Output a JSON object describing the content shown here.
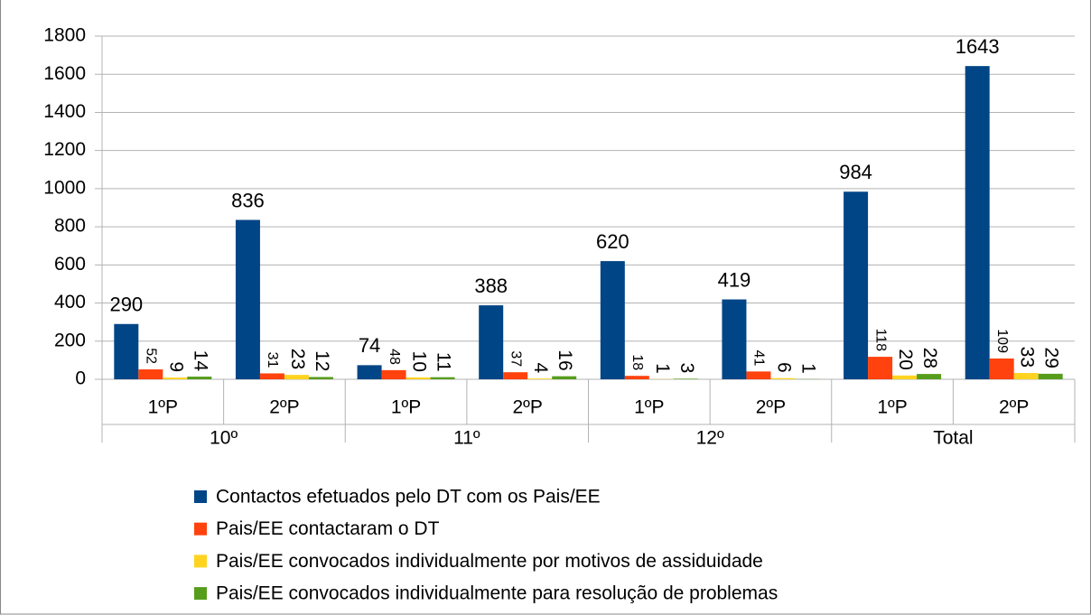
{
  "chart_data": {
    "type": "bar",
    "categories": [
      "1ºP",
      "2ºP",
      "1ºP",
      "2ºP",
      "1ºP",
      "2ºP",
      "1ºP",
      "2ºP"
    ],
    "groups": [
      "10º",
      "11º",
      "12º",
      "Total"
    ],
    "series": [
      {
        "name": "Contactos efetuados pelo DT com os Pais/EE",
        "color": "#004586",
        "values": [
          290,
          836,
          74,
          388,
          620,
          419,
          984,
          1643
        ]
      },
      {
        "name": "Pais/EE contactaram o DT",
        "color": "#ff420e",
        "values": [
          52,
          31,
          48,
          37,
          18,
          41,
          118,
          109
        ]
      },
      {
        "name": "Pais/EE convocados individualmente por motivos de assiduidade",
        "color": "#ffd320",
        "values": [
          9,
          23,
          10,
          4,
          1,
          6,
          20,
          33
        ]
      },
      {
        "name": "Pais/EE convocados individualmente para resolução de problemas",
        "color": "#579d1c",
        "values": [
          14,
          12,
          11,
          16,
          3,
          1,
          28,
          29
        ]
      }
    ],
    "ylim": [
      0,
      1800
    ],
    "yticks": [
      0,
      200,
      400,
      600,
      800,
      1000,
      1200,
      1400,
      1600,
      1800
    ],
    "grid": true,
    "legend": "bottom"
  }
}
